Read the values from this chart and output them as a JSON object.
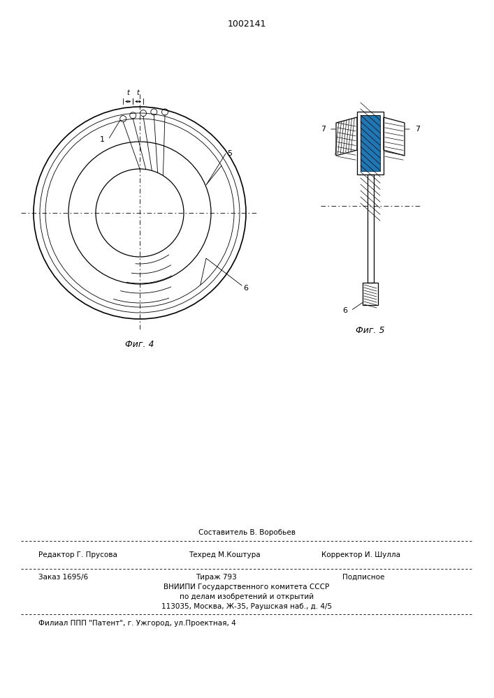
{
  "patent_number": "1002141",
  "fig4_label": "Фиг. 4",
  "fig5_label": "Фиг. 5",
  "bg_color": "#ffffff",
  "line_color": "#000000",
  "footer_sestavitel": "Составитель В. Воробьев",
  "footer_redaktor": "Редактор Г. Прусова",
  "footer_tehred": "Техред М.Коштура",
  "footer_korrektor": "Корректор И. Шулла",
  "footer_zakaz": "Заказ 1695/6",
  "footer_tirazh": "Тираж 793",
  "footer_podpisnoe": "Подписное",
  "footer_vniipи": "ВНИИПИ Государственного комитета СССР",
  "footer_po_delam": "по делам изобретений и открытий",
  "footer_address": "113035, Москва, Ж-35, Раушская наб., д. 4/5",
  "footer_filial": "Филиал ППП \"Патент\", г. Ужгород, ул.Проектная, 4"
}
